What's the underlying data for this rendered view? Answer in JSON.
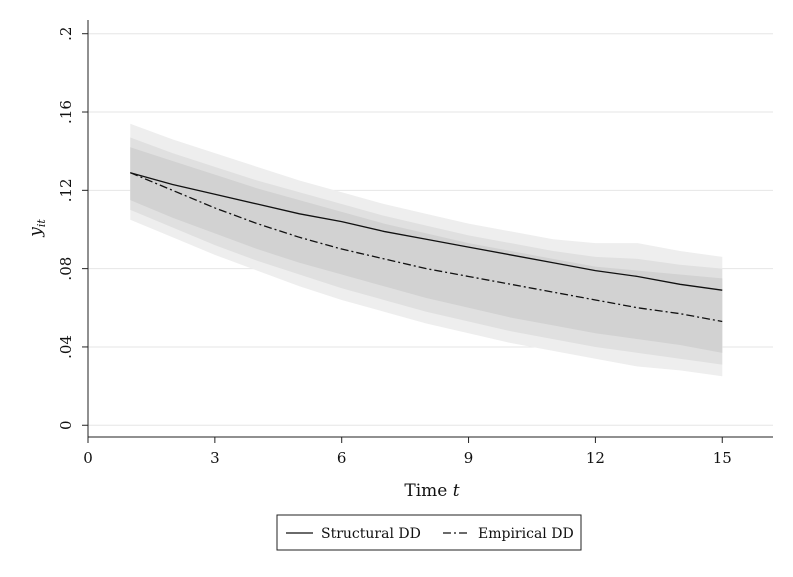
{
  "chart_data": {
    "type": "line",
    "title": "",
    "xlabel": "Time",
    "xlabel_var": "t",
    "ylabel": "y",
    "ylabel_sub": "it",
    "xlim": [
      0,
      16.2
    ],
    "ylim": [
      -0.006,
      0.207
    ],
    "xticks": [
      0,
      3,
      6,
      9,
      12,
      15
    ],
    "xtick_labels": [
      "0",
      "3",
      "6",
      "9",
      "12",
      "15"
    ],
    "yticks": [
      0,
      0.04,
      0.08,
      0.12,
      0.16,
      0.2
    ],
    "ytick_labels": [
      "0",
      ".04",
      ".08",
      ".12",
      ".16",
      ".2"
    ],
    "grid": true,
    "legend_position": "bottom",
    "x": [
      1,
      2,
      3,
      4,
      5,
      6,
      7,
      8,
      9,
      10,
      11,
      12,
      13,
      14,
      15
    ],
    "series": [
      {
        "name": "Structural DD",
        "style": "solid",
        "values": [
          0.129,
          0.123,
          0.118,
          0.113,
          0.108,
          0.104,
          0.099,
          0.095,
          0.091,
          0.087,
          0.083,
          0.079,
          0.076,
          0.072,
          0.069
        ]
      },
      {
        "name": "Empirical DD",
        "style": "dash-dot",
        "values": [
          0.129,
          0.12,
          0.111,
          0.103,
          0.096,
          0.09,
          0.085,
          0.08,
          0.076,
          0.072,
          0.068,
          0.064,
          0.06,
          0.057,
          0.053
        ]
      }
    ],
    "bands": [
      {
        "name": "outer-band",
        "color": "#eeeeee",
        "lower": [
          0.105,
          0.096,
          0.087,
          0.079,
          0.071,
          0.064,
          0.058,
          0.052,
          0.047,
          0.042,
          0.038,
          0.034,
          0.03,
          0.028,
          0.025
        ],
        "upper": [
          0.154,
          0.146,
          0.139,
          0.132,
          0.125,
          0.119,
          0.113,
          0.108,
          0.103,
          0.099,
          0.095,
          0.093,
          0.093,
          0.089,
          0.086
        ]
      },
      {
        "name": "middle-band",
        "color": "#e0e0e0",
        "lower": [
          0.11,
          0.101,
          0.092,
          0.084,
          0.077,
          0.07,
          0.064,
          0.058,
          0.053,
          0.048,
          0.044,
          0.04,
          0.037,
          0.034,
          0.031
        ],
        "upper": [
          0.147,
          0.139,
          0.132,
          0.125,
          0.119,
          0.113,
          0.107,
          0.102,
          0.097,
          0.093,
          0.089,
          0.086,
          0.085,
          0.082,
          0.08
        ]
      },
      {
        "name": "inner-band",
        "color": "#d2d2d2",
        "lower": [
          0.115,
          0.106,
          0.098,
          0.09,
          0.083,
          0.077,
          0.071,
          0.065,
          0.06,
          0.055,
          0.051,
          0.047,
          0.044,
          0.041,
          0.037
        ],
        "upper": [
          0.142,
          0.135,
          0.128,
          0.121,
          0.115,
          0.109,
          0.103,
          0.098,
          0.093,
          0.089,
          0.085,
          0.081,
          0.079,
          0.077,
          0.075
        ]
      }
    ]
  }
}
